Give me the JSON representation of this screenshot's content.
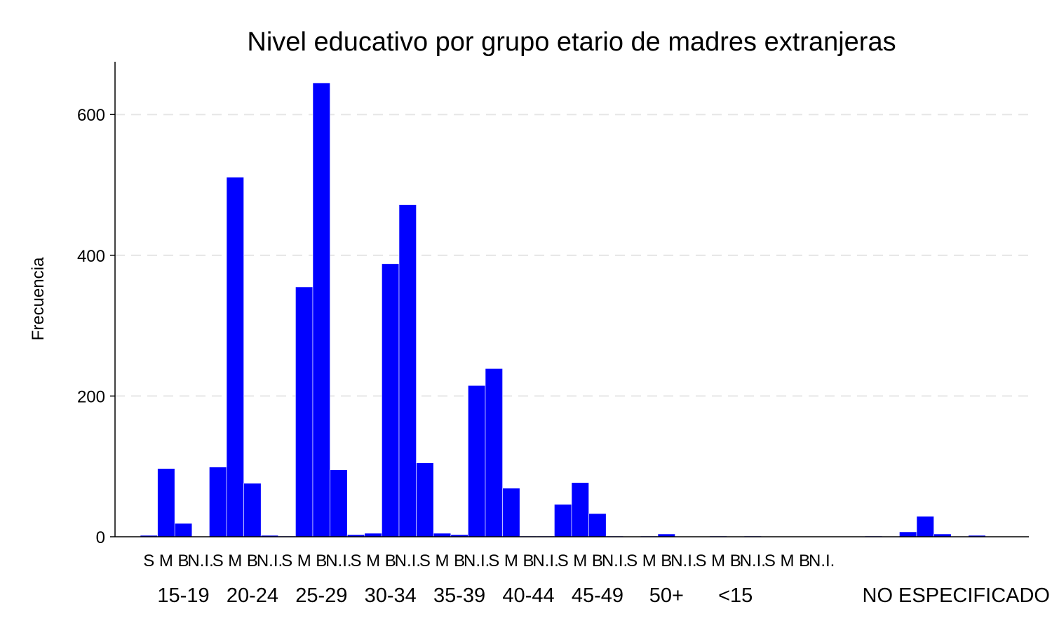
{
  "chart_data": {
    "type": "bar",
    "title": "Nivel educativo por grupo etario de madres extranjeras",
    "xlabel": "",
    "ylabel": "Frecuencia",
    "ylim": [
      0,
      675
    ],
    "yticks": [
      0,
      200,
      400,
      600
    ],
    "grid": "horizontal-dashed",
    "legend": "none",
    "bar_color": "#0000ff",
    "subcategories": [
      "S",
      "M",
      "B",
      "N.I."
    ],
    "groups": [
      {
        "label": "15-19",
        "values": [
          2,
          97,
          19,
          0
        ]
      },
      {
        "label": "20-24",
        "values": [
          99,
          511,
          76,
          2
        ]
      },
      {
        "label": "25-29",
        "values": [
          1,
          355,
          645,
          95
        ]
      },
      {
        "label": "30-34",
        "values": [
          3,
          5,
          388,
          472
        ]
      },
      {
        "label": "35-39",
        "values": [
          105,
          5,
          3,
          215
        ]
      },
      {
        "label": "40-44",
        "values": [
          239,
          69,
          1,
          1
        ]
      },
      {
        "label": "45-49",
        "values": [
          46,
          77,
          33,
          1
        ]
      },
      {
        "label": "50+",
        "values": [
          0,
          1,
          4,
          0
        ]
      },
      {
        "label": "<15",
        "values": [
          0,
          1,
          0,
          1
        ]
      },
      {
        "label": "NO ESPECIFICADO",
        "values": [
          0,
          0,
          0,
          0
        ]
      },
      {
        "label": "",
        "values": [
          0,
          0,
          1,
          0
        ]
      },
      {
        "label": "",
        "values": [
          7,
          29,
          4,
          0
        ]
      },
      {
        "label": "",
        "values": [
          2,
          0,
          0,
          0
        ]
      }
    ],
    "axis_tick_labels": [
      "S",
      "M",
      "B",
      "N.I.",
      "S",
      "M",
      "B",
      "N.I.",
      "S",
      "M",
      "B",
      "N.I.",
      "S",
      "M",
      "B",
      "N.I.",
      "S",
      "M",
      "B",
      "N.I.",
      "S",
      "M",
      "B",
      "N.I.",
      "S",
      "M",
      "B",
      "N.I.",
      "S",
      "M",
      "B",
      "N.I.",
      "S",
      "M",
      "B",
      "N.I.",
      "S",
      "M",
      "B",
      "N.I."
    ],
    "group_labels": [
      "15-19",
      "20-24",
      "25-29",
      "30-34",
      "35-39",
      "40-44",
      "45-49",
      "50+",
      "<15",
      "NO ESPECIFICADO"
    ]
  }
}
